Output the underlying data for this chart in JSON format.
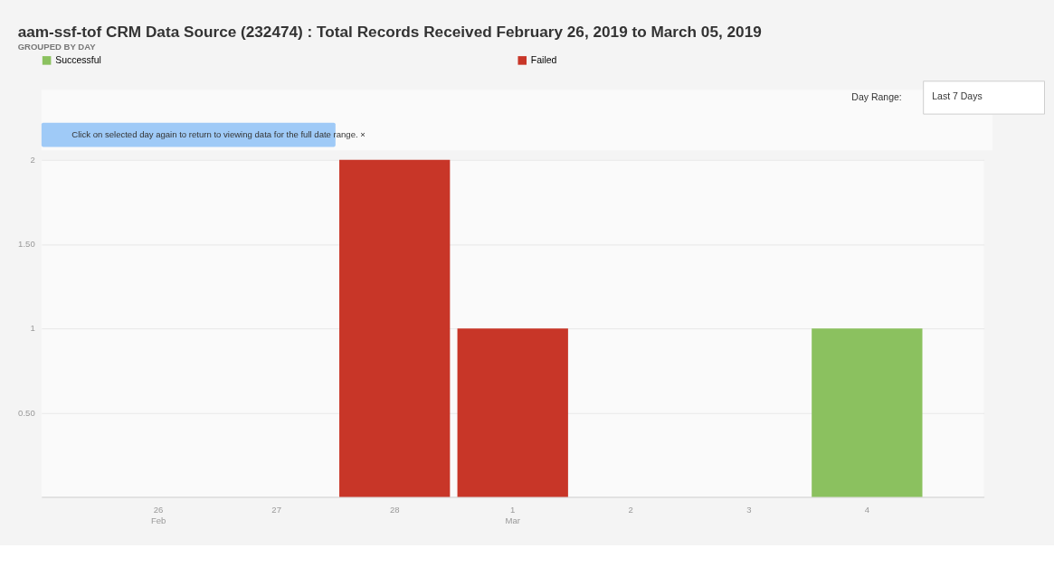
{
  "chart_data": {
    "type": "bar",
    "title": "aam-ssf-tof CRM Data Source (232474) : Total Records Received February 26, 2019 to March 05, 2019",
    "subtitle": "GROUPED BY DAY",
    "annotations": [
      "Day Range:",
      "Last 7 Days",
      "Click on selected day again to return to viewing data for the full date range.  ×"
    ],
    "categories": [
      "26\nFeb",
      "27",
      "28",
      "1\nMar",
      "2",
      "3",
      "4"
    ],
    "series": [
      {
        "name": "Successful",
        "color": "#8bc15f",
        "values": [
          0,
          0,
          0,
          0,
          0,
          0,
          1
        ]
      },
      {
        "name": "Failed",
        "color": "#c83628",
        "values": [
          0,
          0,
          2,
          1,
          0,
          0,
          0
        ]
      }
    ],
    "ylim": [
      0,
      2
    ],
    "yticks": [
      {
        "value": 0.5,
        "label": "0.50"
      },
      1,
      {
        "value": 1.5,
        "label": "1.50"
      },
      2
    ],
    "grid": "y",
    "legend": "top"
  }
}
